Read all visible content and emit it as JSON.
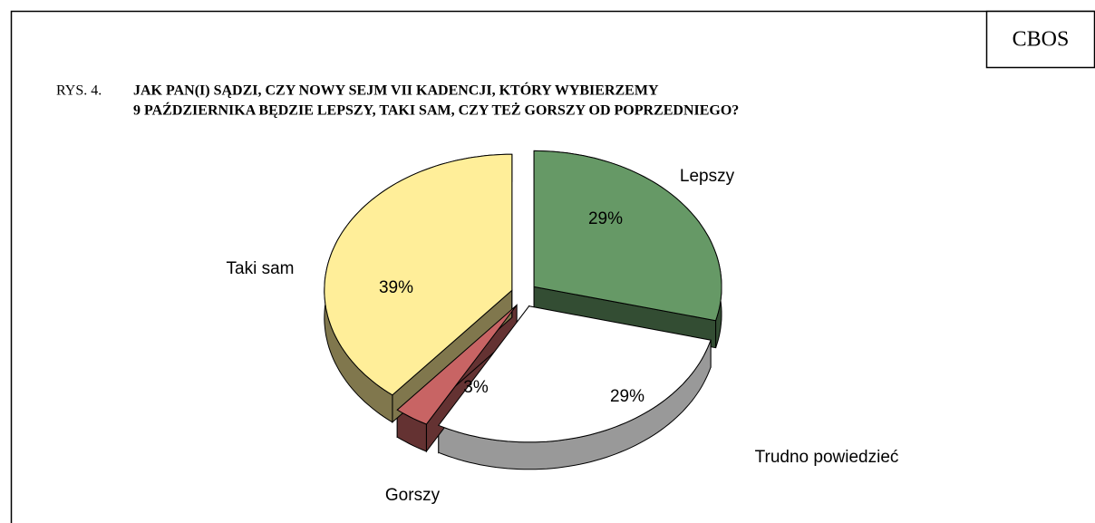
{
  "chart_data": {
    "type": "pie",
    "badge": "CBOS",
    "figure_label": "RYS. 4.",
    "title_lines": [
      "JAK PAN(I) SĄDZI, CZY NOWY SEJM VII KADENCJI, KTÓRY WYBIERZEMY",
      "9 PAŹDZIERNIKA BĘDZIE LEPSZY, TAKI SAM, CZY TEŻ GORSZY OD POPRZEDNIEGO?"
    ],
    "categories": [
      "Lepszy",
      "Trudno powiedzieć",
      "Gorszy",
      "Taki sam"
    ],
    "values": [
      29,
      29,
      3,
      39
    ],
    "value_labels": [
      "29%",
      "29%",
      "3%",
      "39%"
    ],
    "colors": [
      "#669966",
      "#ffffff",
      "#c86464",
      "#ffee99"
    ]
  }
}
